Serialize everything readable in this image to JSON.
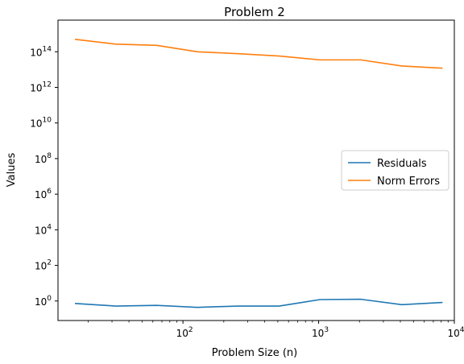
{
  "chart_data": {
    "type": "line",
    "title": "Problem 2",
    "xlabel": "Problem Size (n)",
    "ylabel": "Values",
    "xscale": "log",
    "yscale": "log",
    "xlim": [
      12,
      10000
    ],
    "ylim": [
      0.08,
      6000000000000000
    ],
    "x_ticks": [
      {
        "value": 100,
        "base": "10",
        "exp": "2"
      },
      {
        "value": 1000,
        "base": "10",
        "exp": "3"
      },
      {
        "value": 10000,
        "base": "10",
        "exp": "4"
      }
    ],
    "y_ticks": [
      {
        "value": 1,
        "base": "10",
        "exp": "0"
      },
      {
        "value": 100,
        "base": "10",
        "exp": "2"
      },
      {
        "value": 10000,
        "base": "10",
        "exp": "4"
      },
      {
        "value": 1000000,
        "base": "10",
        "exp": "6"
      },
      {
        "value": 100000000,
        "base": "10",
        "exp": "8"
      },
      {
        "value": 10000000000,
        "base": "10",
        "exp": "10"
      },
      {
        "value": 1000000000000,
        "base": "10",
        "exp": "12"
      },
      {
        "value": 100000000000000,
        "base": "10",
        "exp": "14"
      }
    ],
    "grid": false,
    "legend_position": "center-right",
    "x": [
      16,
      32,
      64,
      128,
      256,
      512,
      1024,
      2048,
      4096,
      8192
    ],
    "series": [
      {
        "name": "Residuals",
        "color": "#1f77b4",
        "values": [
          0.73,
          0.52,
          0.57,
          0.44,
          0.52,
          0.52,
          1.2,
          1.25,
          0.62,
          0.83
        ]
      },
      {
        "name": "Norm Errors",
        "color": "#ff7f0e",
        "values": [
          500000000000000,
          270000000000000,
          230000000000000,
          100000000000000,
          78000000000000,
          58000000000000,
          35000000000000,
          35000000000000,
          16000000000000,
          12000000000000
        ]
      }
    ]
  }
}
